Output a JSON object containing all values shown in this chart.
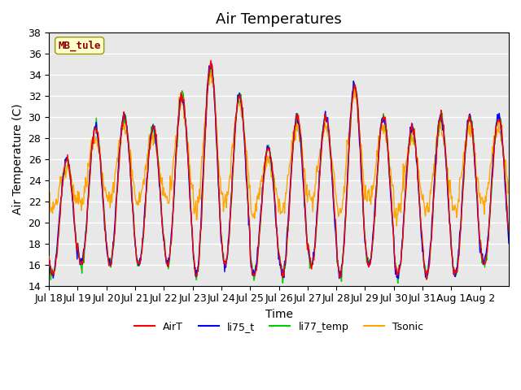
{
  "title": "Air Temperatures",
  "ylabel": "Air Temperature (C)",
  "xlabel": "Time",
  "station_label": "MB_tule",
  "ylim": [
    14,
    38
  ],
  "yticks": [
    14,
    16,
    18,
    20,
    22,
    24,
    26,
    28,
    30,
    32,
    34,
    36,
    38
  ],
  "xtick_labels": [
    "Jul 18",
    "Jul 19",
    "Jul 20",
    "Jul 21",
    "Jul 22",
    "Jul 23",
    "Jul 24",
    "Jul 25",
    "Jul 26",
    "Jul 27",
    "Jul 28",
    "Jul 29",
    "Jul 30",
    "Jul 31",
    "Aug 1",
    "Aug 2"
  ],
  "series_colors": {
    "AirT": "#ff0000",
    "li75_t": "#0000ff",
    "li77_temp": "#00cc00",
    "Tsonic": "#ffa500"
  },
  "plot_bg_color": "#e8e8e8",
  "grid_color": "#ffffff",
  "title_fontsize": 13,
  "axis_fontsize": 10,
  "tick_fontsize": 9,
  "n_days": 16,
  "n_per_day": 48,
  "day_peaks": [
    26,
    29,
    30,
    29,
    32,
    35,
    32,
    27,
    30,
    30,
    33,
    30,
    29,
    30,
    30,
    30
  ],
  "day_mins": [
    15,
    16,
    16,
    16,
    16,
    15,
    16,
    15,
    15,
    16,
    15,
    16,
    15,
    15,
    15,
    16
  ]
}
